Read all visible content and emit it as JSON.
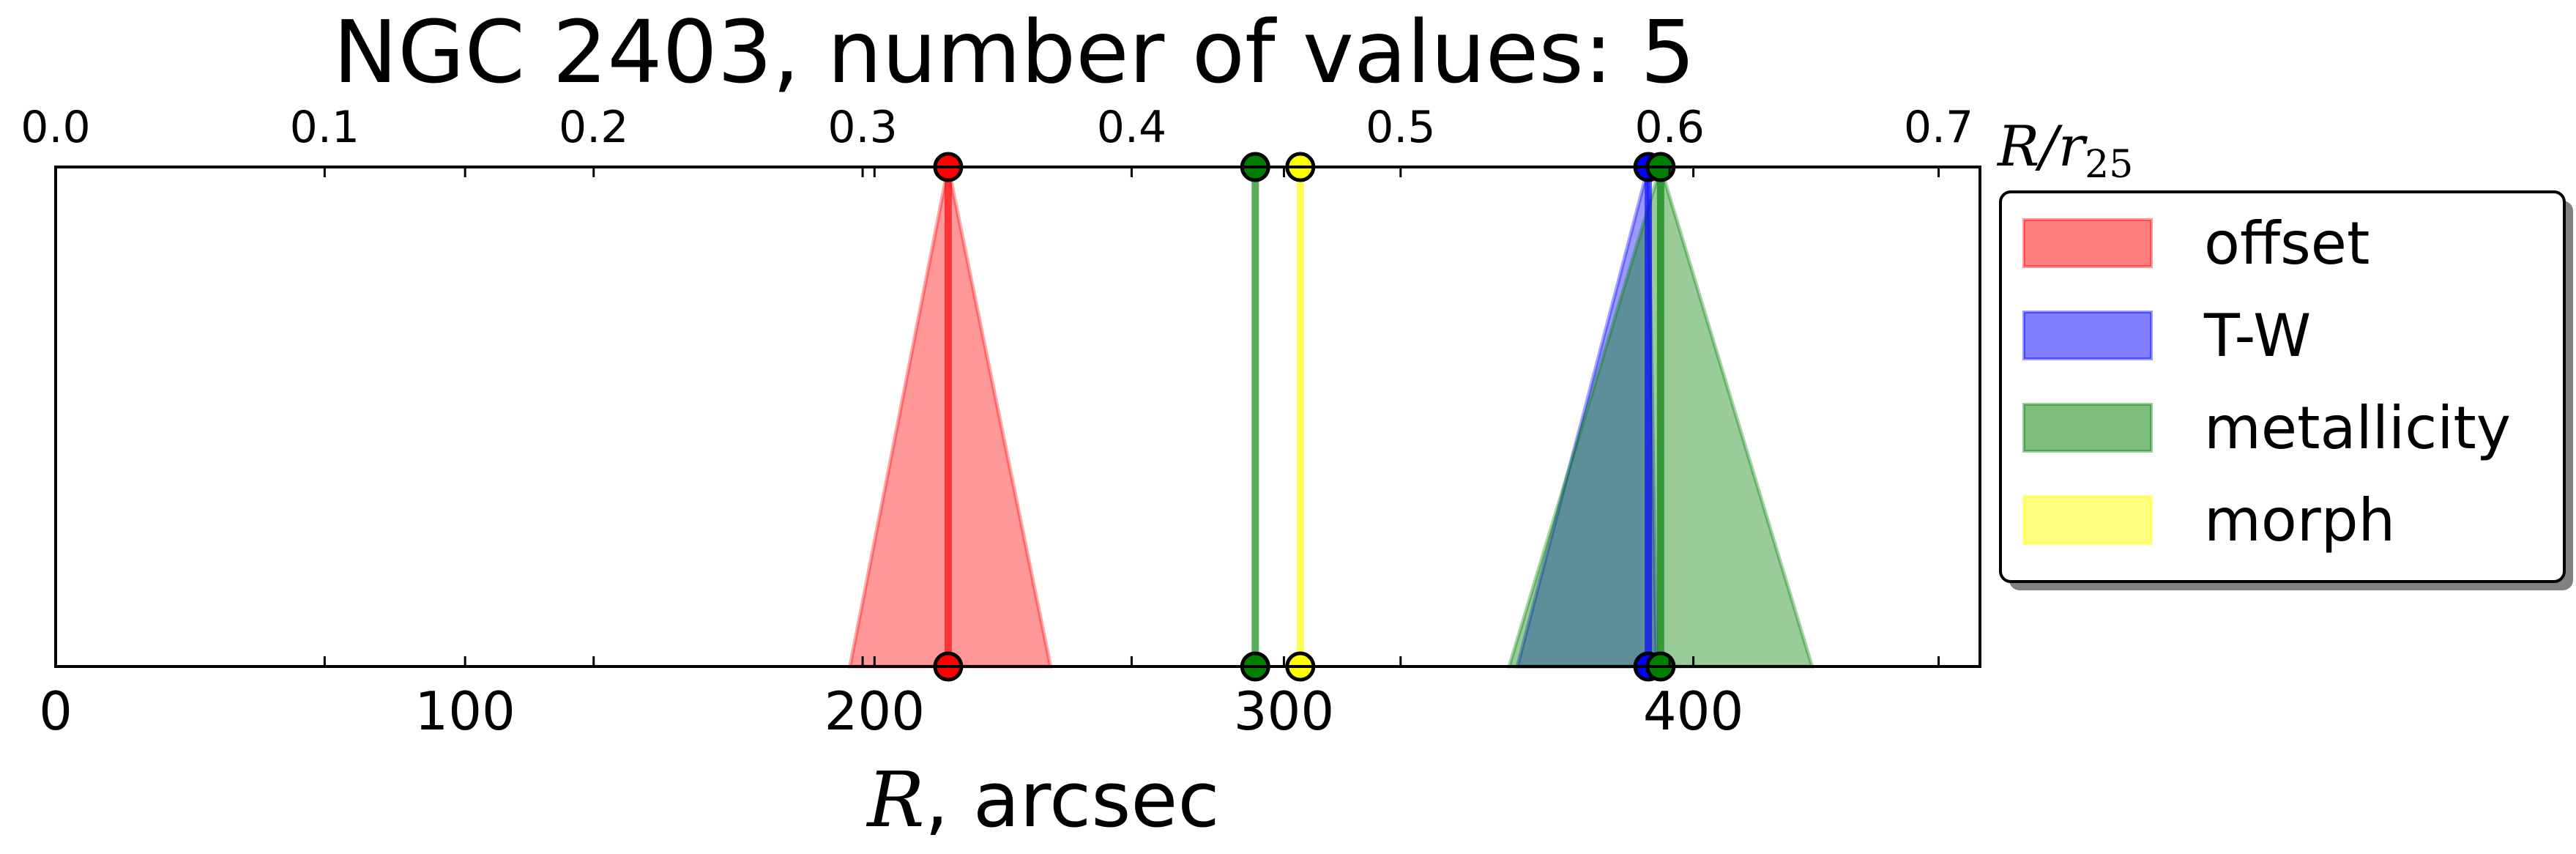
{
  "chart_data": {
    "type": "area",
    "title": "NGC 2403, number of values: 5",
    "xlabel_var": "R",
    "xlabel_rest": ", arcsec",
    "top_axis_label_base": "R/r",
    "top_axis_label_sub": "25",
    "xlim": [
      0,
      470
    ],
    "x_ticks": [
      0,
      100,
      200,
      300,
      400
    ],
    "x_tick_labels": [
      "0",
      "100",
      "200",
      "300",
      "400"
    ],
    "top_ticks": [
      0.0,
      0.1,
      0.2,
      0.3,
      0.4,
      0.5,
      0.6,
      0.7
    ],
    "top_tick_labels": [
      "0.0",
      "0.1",
      "0.2",
      "0.3",
      "0.4",
      "0.5",
      "0.6",
      "0.7"
    ],
    "top_scale_arcsec_per_unit": 657,
    "series": [
      {
        "name": "offset",
        "color": "#ff0000",
        "center": 218,
        "low": 194,
        "high": 243
      },
      {
        "name": "T-W",
        "color": "#0000ff",
        "center": 389,
        "low": 357,
        "high": 391
      },
      {
        "name": "metallicity",
        "color": "#008000",
        "center": 293,
        "low": 293,
        "high": 293
      },
      {
        "name": "metallicity",
        "color": "#008000",
        "center": 392,
        "low": 355,
        "high": 429
      },
      {
        "name": "morph",
        "color": "#ffff00",
        "center": 304,
        "low": 304,
        "high": 304
      }
    ],
    "legend": [
      {
        "label": "offset",
        "color": "#ff0000"
      },
      {
        "label": "T-W",
        "color": "#0000ff"
      },
      {
        "label": "metallicity",
        "color": "#008000"
      },
      {
        "label": "morph",
        "color": "#ffff00"
      }
    ],
    "legend_position": "right",
    "grid": false
  }
}
